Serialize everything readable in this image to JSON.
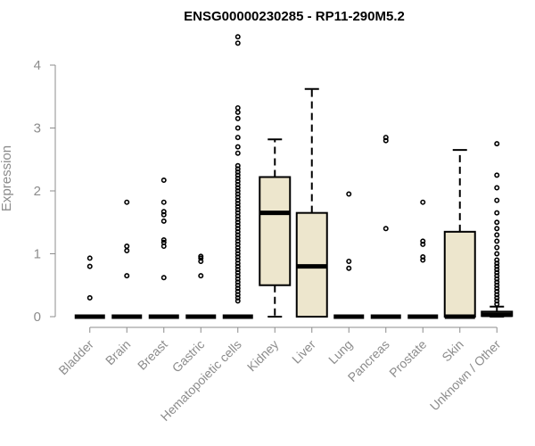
{
  "chart_data": {
    "type": "box",
    "title": "ENSG00000230285 - RP11-290M5.2",
    "xlabel": "",
    "ylabel": "Expression",
    "ylim": [
      0,
      4.5
    ],
    "yticks": [
      0,
      1,
      2,
      3,
      4
    ],
    "box_fill": "#ede6cd",
    "categories": [
      "Bladder",
      "Brain",
      "Breast",
      "Gastric",
      "Hematopoietic cells",
      "Kidney",
      "Liver",
      "Lung",
      "Pancreas",
      "Prostate",
      "Skin",
      "Unknown / Other"
    ],
    "boxes": [
      {
        "q1": 0,
        "median": 0,
        "q3": 0,
        "whisker_low": 0,
        "whisker_high": 0,
        "outliers": [
          0.3,
          0.8,
          0.93
        ]
      },
      {
        "q1": 0,
        "median": 0,
        "q3": 0,
        "whisker_low": 0,
        "whisker_high": 0,
        "outliers": [
          0.65,
          1.05,
          1.12,
          1.82
        ]
      },
      {
        "q1": 0,
        "median": 0,
        "q3": 0,
        "whisker_low": 0,
        "whisker_high": 0,
        "outliers": [
          0.62,
          1.12,
          1.18,
          1.22,
          1.52,
          1.62,
          1.67,
          1.82,
          2.17
        ]
      },
      {
        "q1": 0,
        "median": 0,
        "q3": 0,
        "whisker_low": 0,
        "whisker_high": 0,
        "outliers": [
          0.65,
          0.88,
          0.93,
          0.96
        ]
      },
      {
        "q1": 0,
        "median": 0,
        "q3": 0,
        "whisker_low": 0,
        "whisker_high": 0,
        "outliers": [
          0.25,
          0.3,
          0.35,
          0.4,
          0.45,
          0.5,
          0.55,
          0.6,
          0.65,
          0.7,
          0.75,
          0.8,
          0.85,
          0.9,
          0.95,
          1.0,
          1.05,
          1.1,
          1.15,
          1.2,
          1.25,
          1.3,
          1.35,
          1.4,
          1.45,
          1.5,
          1.55,
          1.6,
          1.65,
          1.7,
          1.75,
          1.8,
          1.85,
          1.9,
          1.95,
          2.0,
          2.05,
          2.1,
          2.15,
          2.2,
          2.25,
          2.3,
          2.35,
          2.4,
          2.6,
          2.7,
          2.85,
          3.0,
          3.15,
          3.25,
          3.32,
          4.35,
          4.45
        ]
      },
      {
        "q1": 0.5,
        "median": 1.65,
        "q3": 2.22,
        "whisker_low": 0,
        "whisker_high": 2.82,
        "outliers": []
      },
      {
        "q1": 0,
        "median": 0.8,
        "q3": 1.65,
        "whisker_low": 0,
        "whisker_high": 3.62,
        "outliers": []
      },
      {
        "q1": 0,
        "median": 0,
        "q3": 0,
        "whisker_low": 0,
        "whisker_high": 0,
        "outliers": [
          0.77,
          0.88,
          1.95
        ]
      },
      {
        "q1": 0,
        "median": 0,
        "q3": 0,
        "whisker_low": 0,
        "whisker_high": 0,
        "outliers": [
          1.4,
          2.8,
          2.85
        ]
      },
      {
        "q1": 0,
        "median": 0,
        "q3": 0,
        "whisker_low": 0,
        "whisker_high": 0,
        "outliers": [
          0.9,
          0.95,
          1.15,
          1.2,
          1.82
        ]
      },
      {
        "q1": 0,
        "median": 0,
        "q3": 1.35,
        "whisker_low": 0,
        "whisker_high": 2.65,
        "outliers": []
      },
      {
        "q1": 0.01,
        "median": 0.03,
        "q3": 0.08,
        "whisker_low": 0,
        "whisker_high": 0.16,
        "outliers": [
          0.2,
          0.25,
          0.3,
          0.35,
          0.4,
          0.45,
          0.5,
          0.55,
          0.6,
          0.65,
          0.7,
          0.75,
          0.8,
          0.85,
          0.9,
          1.0,
          1.1,
          1.2,
          1.3,
          1.4,
          1.5,
          1.65,
          1.85,
          2.05,
          2.25,
          2.75
        ]
      }
    ]
  }
}
